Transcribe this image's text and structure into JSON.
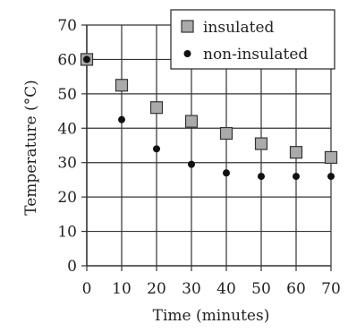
{
  "chart_data": {
    "type": "scatter",
    "title": "",
    "xlabel": "Time (minutes)",
    "ylabel": "Temperature (°C)",
    "xlim": [
      0,
      70
    ],
    "ylim": [
      0,
      70
    ],
    "xticks": [
      "0",
      "10",
      "20",
      "30",
      "40",
      "50",
      "60",
      "70"
    ],
    "yticks": [
      "0",
      "10",
      "20",
      "30",
      "40",
      "50",
      "60",
      "70"
    ],
    "grid": true,
    "legend_position": "top-right",
    "series": [
      {
        "name": "insulated",
        "marker": "square",
        "color": "#aaaaaa",
        "x": [
          0,
          10,
          20,
          30,
          40,
          50,
          60,
          70
        ],
        "y": [
          60,
          52.5,
          46,
          42,
          38.5,
          35.5,
          33,
          31.5
        ]
      },
      {
        "name": "non-insulated",
        "marker": "circle",
        "color": "#111111",
        "x": [
          0,
          10,
          20,
          30,
          40,
          50,
          60,
          70
        ],
        "y": [
          60,
          42.5,
          34,
          29.5,
          27,
          26,
          26,
          26
        ]
      }
    ]
  }
}
